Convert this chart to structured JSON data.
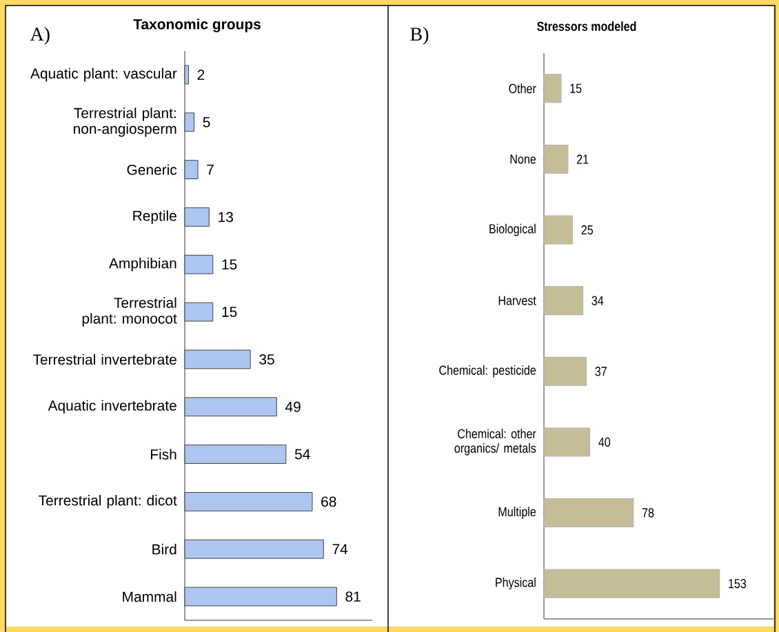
{
  "chart_data": [
    {
      "type": "bar",
      "orientation": "horizontal",
      "title": "Taxonomic groups",
      "annotations": [
        "A)"
      ],
      "categories": [
        "Aquatic plant: vascular",
        "Terrestrial plant: non-angiosperm",
        "Generic",
        "Reptile",
        "Amphibian",
        "Terrestrial plant: monocot",
        "Terrestrial invertebrate",
        "Aquatic invertebrate",
        "Fish",
        "Terrestrial plant: dicot",
        "Bird",
        "Mammal"
      ],
      "values": [
        2,
        5,
        7,
        13,
        15,
        15,
        35,
        49,
        54,
        68,
        74,
        81
      ],
      "color": "#aec6ef",
      "xlim": [
        0,
        100
      ],
      "tick_labels": "y",
      "data_labels": true
    },
    {
      "type": "bar",
      "orientation": "horizontal",
      "title": "Stressors modeled",
      "annotations": [
        "B)"
      ],
      "categories": [
        "Other",
        "None",
        "Biological",
        "Harvest",
        "Chemical: pesticide",
        "Chemical: other organics/ metals",
        "Multiple",
        "Physical"
      ],
      "values": [
        15,
        21,
        25,
        34,
        37,
        40,
        78,
        153
      ],
      "color": "#c5bd98",
      "xlim": [
        0,
        200
      ],
      "tick_labels": "y",
      "data_labels": true
    }
  ]
}
